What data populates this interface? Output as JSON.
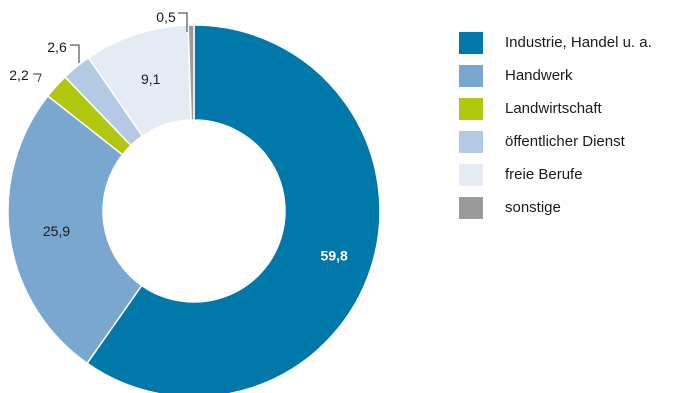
{
  "chart_data": {
    "type": "pie",
    "variant": "donut",
    "decimal_separator": ",",
    "start": "top",
    "direction": "clockwise",
    "legend_position": "right",
    "slices": [
      {
        "label": "Industrie, Handel u. a.",
        "value": 59.8,
        "value_text": "59,8",
        "color": "#0078aa",
        "label_color": "#ffffff",
        "label_bold": true
      },
      {
        "label": "Handwerk",
        "value": 25.9,
        "value_text": "25,9",
        "color": "#7aa7cf",
        "label_color": "#1a1a1a",
        "label_bold": false
      },
      {
        "label": "Landwirtschaft",
        "value": 2.2,
        "value_text": "2,2",
        "color": "#b0c70e",
        "label_color": "#1a1a1a",
        "label_bold": false,
        "leader": true
      },
      {
        "label": "öffentlicher Dienst",
        "value": 2.6,
        "value_text": "2,6",
        "color": "#b4cae4",
        "label_color": "#1a1a1a",
        "label_bold": false,
        "leader": true
      },
      {
        "label": "freie Berufe",
        "value": 9.1,
        "value_text": "9,1",
        "color": "#e4ebf5",
        "label_color": "#1a1a1a",
        "label_bold": false
      },
      {
        "label": "sonstige",
        "value": 0.5,
        "value_text": "0,5",
        "color": "#9b9b9b",
        "label_color": "#1a1a1a",
        "label_bold": false,
        "leader": true
      }
    ]
  }
}
